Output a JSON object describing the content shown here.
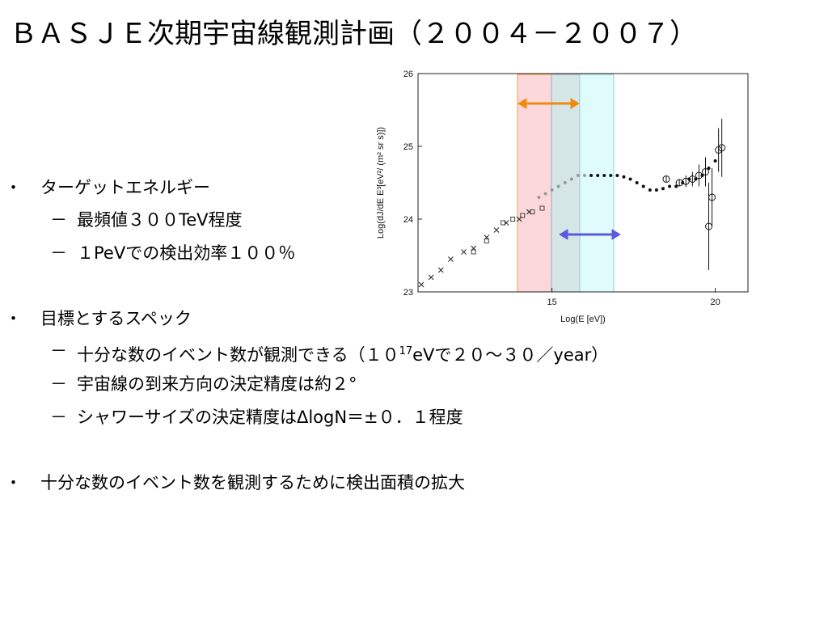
{
  "title": "ＢＡＳＪＥ次期宇宙線観測計画（２００４－２００７）",
  "bullets": [
    {
      "text": "ターゲットエネルギー",
      "items": [
        {
          "text": "最頻値３００TeV程度"
        },
        {
          "text": "１PeVでの検出効率１００％"
        }
      ]
    },
    {
      "text": "目標とするスペック",
      "items": [
        {
          "text": "十分な数のイベント数が観測できる（１０",
          "sup": "17",
          "after": "eVで２０～３０／year）"
        },
        {
          "text": "宇宙線の到来方向の決定精度は約２°"
        },
        {
          "text": "シャワーサイズの決定精度はΔlogN＝±０．１程度"
        }
      ]
    },
    {
      "text": "十分な数のイベント数を観測するために検出面積の拡大",
      "items": []
    }
  ],
  "chart_data": {
    "type": "scatter",
    "x_label": "Log(E [eV])",
    "y_label": "Log(dJ/dE E³[eV²/ (m² sr s)])",
    "xlim": [
      10.9,
      21.0
    ],
    "ylim": [
      23,
      26
    ],
    "xticks": [
      15,
      20
    ],
    "yticks": [
      23,
      24,
      25,
      26
    ],
    "series": [
      {
        "marker": "cross",
        "color": "#333333",
        "x": [
          11.0,
          11.3,
          11.6,
          11.9,
          12.3,
          12.6,
          13.0,
          13.3,
          13.6,
          14.0,
          14.3
        ],
        "values": [
          23.1,
          23.2,
          23.3,
          23.45,
          23.55,
          23.6,
          23.75,
          23.85,
          23.95,
          24.0,
          24.1
        ]
      },
      {
        "marker": "square",
        "color": "#444444",
        "x": [
          12.6,
          13.0,
          13.5,
          13.8,
          14.1,
          14.4,
          14.7
        ],
        "values": [
          23.55,
          23.7,
          23.95,
          24.0,
          24.05,
          24.1,
          24.15
        ]
      },
      {
        "marker": "dot",
        "color": "#999999",
        "x": [
          14.6,
          14.8,
          15.0,
          15.2,
          15.4,
          15.6,
          15.8,
          16.0
        ],
        "values": [
          24.3,
          24.35,
          24.4,
          24.45,
          24.5,
          24.55,
          24.6,
          24.6
        ]
      },
      {
        "marker": "dot",
        "color": "#111111",
        "x": [
          16.2,
          16.4,
          16.6,
          16.8,
          17.0,
          17.2,
          17.4,
          17.6,
          17.8,
          18.0,
          18.2,
          18.4,
          18.6,
          18.8,
          19.0,
          19.2,
          19.4,
          19.6,
          19.8,
          20.0
        ],
        "values": [
          24.6,
          24.6,
          24.6,
          24.6,
          24.6,
          24.58,
          24.55,
          24.5,
          24.45,
          24.4,
          24.4,
          24.42,
          24.45,
          24.45,
          24.5,
          24.55,
          24.55,
          24.6,
          24.7,
          24.8
        ]
      },
      {
        "marker": "circle",
        "color": "#111111",
        "x": [
          18.5,
          18.9,
          19.1,
          19.3,
          19.5,
          19.7,
          19.9,
          19.8,
          20.1,
          20.2
        ],
        "values": [
          24.55,
          24.5,
          24.52,
          24.55,
          24.6,
          24.65,
          24.3,
          23.9,
          24.95,
          24.98
        ],
        "errors": [
          0.05,
          0.05,
          0.08,
          0.1,
          0.15,
          0.2,
          0.4,
          0.6,
          0.3,
          0.4
        ]
      }
    ]
  }
}
